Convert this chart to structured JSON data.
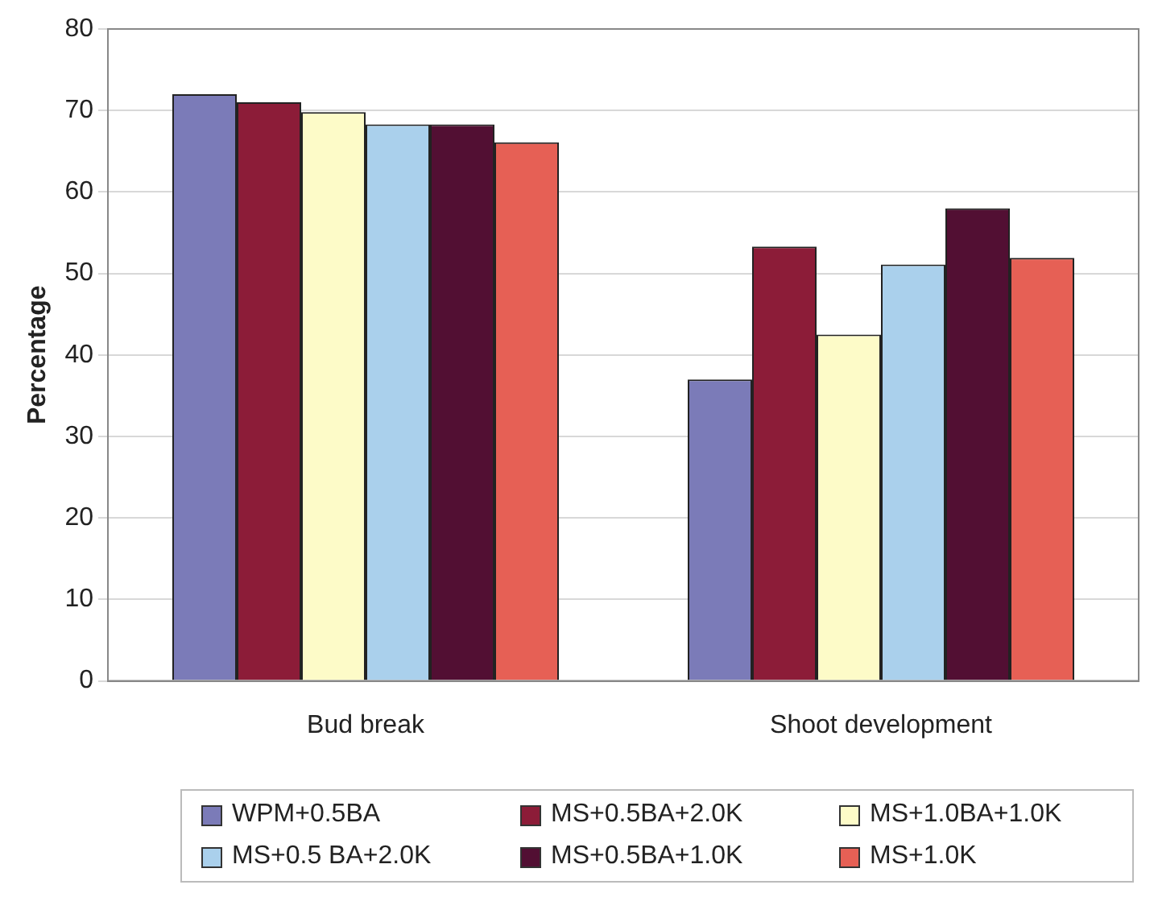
{
  "chart_data": {
    "type": "bar",
    "ylabel": "Percentage",
    "categories": [
      "Bud break",
      "Shoot development"
    ],
    "series": [
      {
        "name": "WPM+0.5BA",
        "color": "#7b7bb8",
        "values": [
          72,
          37
        ]
      },
      {
        "name": "MS+0.5BA+2.0K",
        "color": "#8c1c38",
        "values": [
          71,
          53.3
        ]
      },
      {
        "name": "MS+1.0BA+1.0K",
        "color": "#fdfbc8",
        "values": [
          69.8,
          42.5
        ]
      },
      {
        "name": "MS+0.5 BA+2.0K",
        "color": "#aad0ec",
        "values": [
          68.3,
          51.1
        ]
      },
      {
        "name": "MS+0.5BA+1.0K",
        "color": "#520f33",
        "values": [
          68.3,
          58
        ]
      },
      {
        "name": "MS+1.0K",
        "color": "#e66055",
        "values": [
          66.1,
          51.9
        ]
      }
    ],
    "ylim": [
      0,
      80
    ],
    "yticks": [
      0,
      10,
      20,
      30,
      40,
      50,
      60,
      70,
      80
    ],
    "grid": "y",
    "legend": "bottom"
  }
}
